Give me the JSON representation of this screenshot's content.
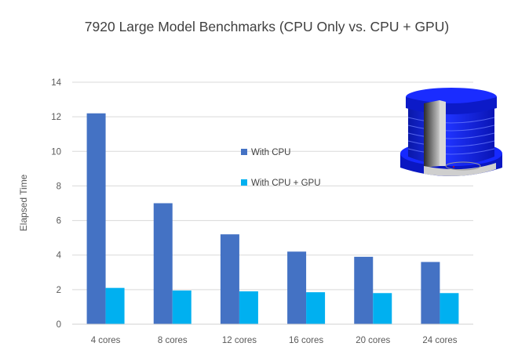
{
  "chart_data": {
    "type": "bar",
    "title": "7920 Large Model Benchmarks (CPU Only vs. CPU + GPU)",
    "xlabel": "",
    "ylabel": "Elapsed Time",
    "ylim": [
      0,
      14
    ],
    "yticks": [
      0,
      2,
      4,
      6,
      8,
      10,
      12,
      14
    ],
    "grid": true,
    "legend_position": "center-right",
    "categories": [
      "4 cores",
      "8 cores",
      "12 cores",
      "16 cores",
      "20 cores",
      "24 cores"
    ],
    "series": [
      {
        "name": "With CPU",
        "color": "#4472C4",
        "values": [
          12.2,
          7.0,
          5.2,
          4.2,
          3.9,
          3.6
        ]
      },
      {
        "name": "With CPU + GPU",
        "color": "#00B0F0",
        "values": [
          2.1,
          1.95,
          1.9,
          1.85,
          1.8,
          1.8
        ]
      }
    ],
    "inset_image": "3d-model-render"
  }
}
